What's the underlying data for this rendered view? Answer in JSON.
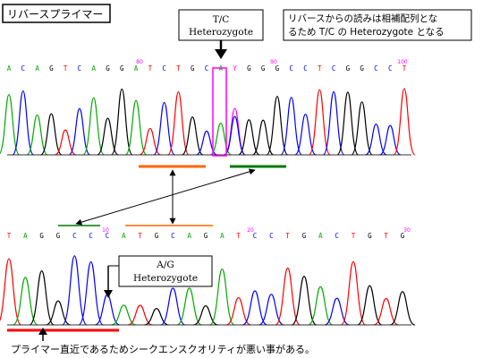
{
  "title_label": "リバースプライマー",
  "tc_callout": {
    "line1": "T/C",
    "line2": "Heterozygote"
  },
  "reverse_note": {
    "line1": "リバースからの読みは相補配列とな",
    "line2": "るため T/C の Heterozygote となる"
  },
  "ag_callout": {
    "line1": "A/G",
    "line2": "Heterozygote"
  },
  "caption": "プライマー直近であるためシークエンスクオリティが悪い事がある。",
  "top_trace": {
    "bases": [
      "A",
      "C",
      "A",
      "G",
      "T",
      "C",
      "A",
      "G",
      "G",
      "A",
      "T",
      "C",
      "T",
      "G",
      "C",
      "A",
      "Y",
      "G",
      "G",
      "G",
      "C",
      "C",
      "T",
      "C",
      "G",
      "G",
      "C",
      "C",
      "T"
    ],
    "position_marks": [
      "80",
      "90",
      "100"
    ]
  },
  "bottom_trace": {
    "bases": [
      "T",
      "A",
      "G",
      "G",
      "C",
      "C",
      "C",
      "A",
      "T",
      "G",
      "C",
      "A",
      "G",
      "A",
      "T",
      "C",
      "C",
      "T",
      "G",
      "A",
      "C",
      "T",
      "G",
      "T",
      "G"
    ],
    "position_marks": [
      "10",
      "20",
      "30"
    ]
  },
  "colors": {
    "A": "#00aa00",
    "C": "#0000ff",
    "G": "#000000",
    "T": "#ff0000",
    "heterozygote_marker": "#ff00ff",
    "forward_primer_bar": "#ff6600",
    "reverse_primer_bar": "#007700",
    "low_quality_bar": "#ff0000",
    "box_border": "#000000"
  }
}
